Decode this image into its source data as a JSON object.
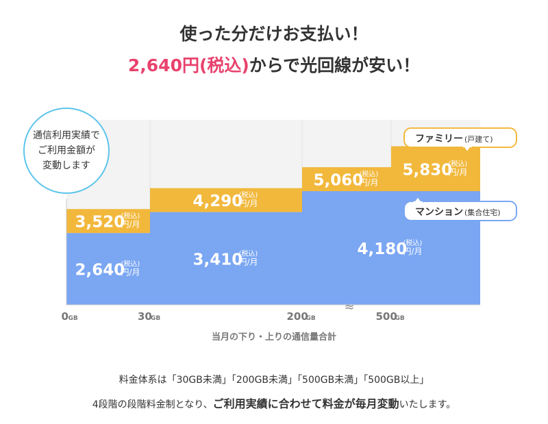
{
  "header": {
    "title": "使った分だけお支払い！",
    "price_accent": "2,640円(税込)",
    "price_rest": "からで光回線が安い！"
  },
  "footer": {
    "line1": "料金体系は「30GB未満」「200GB未満」「500GB未満」「500GB以上」",
    "line2_prefix": "4段階の段階料金制となり、",
    "line2_emphasis": "ご利用実績に合わせて料金が毎月変動",
    "line2_suffix": "いたします。"
  },
  "colors": {
    "family": "#f2b83c",
    "mansion": "#7aa6f2",
    "family_label_border": "#f2b83c",
    "mansion_label_border": "#7aa6f2",
    "callout_border": "#5cc4ea",
    "axis_text": "#777777",
    "bg_band": "#f3f3f3"
  },
  "chart_data": {
    "type": "bar",
    "subtype": "stacked-step",
    "title": "",
    "xlabel": "当月の下り・上りの通信量合計",
    "ylabel": "",
    "tick_labels": [
      {
        "num": "0",
        "unit": "GB"
      },
      {
        "num": "30",
        "unit": "GB"
      },
      {
        "num": "200",
        "unit": "GB"
      },
      {
        "num": "500",
        "unit": "GB"
      }
    ],
    "categories": [
      "30GB未満",
      "200GB未満",
      "500GB未満",
      "500GB以上"
    ],
    "series": [
      {
        "name": "マンション",
        "sub": "(集合住宅)",
        "values": [
          2640,
          3410,
          4180,
          4180
        ]
      },
      {
        "name": "ファミリー",
        "sub": "(戸建て)",
        "values": [
          3520,
          4290,
          5060,
          5830
        ]
      }
    ],
    "price_labels": {
      "mansion": [
        "2,640",
        "3,410",
        "4,180"
      ],
      "family": [
        "3,520",
        "4,290",
        "5,060",
        "5,830"
      ]
    },
    "tax": "(税込)",
    "unit": "円/月",
    "ylim": [
      0,
      6800
    ],
    "callout": [
      "通信利用実績で",
      "ご利用金額が",
      "変動します"
    ],
    "axis_break": "≈"
  }
}
